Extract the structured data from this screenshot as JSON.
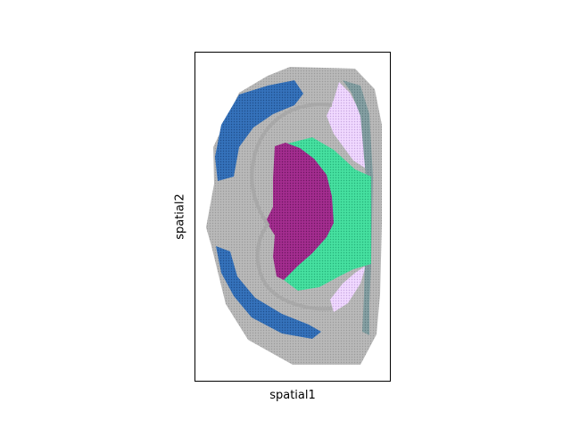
{
  "chart_data": {
    "type": "scatter",
    "title": "",
    "xlabel": "spatial1",
    "ylabel": "spatial2",
    "grid": false,
    "legend": "none",
    "ticks": "none",
    "series": [
      {
        "color": "#b5b5b5",
        "region": "tissue background"
      },
      {
        "color": "#2f6db5",
        "region": "outer cortex band"
      },
      {
        "color": "#e9d0ff",
        "region": "upper right wedge"
      },
      {
        "color": "#e9d0ff",
        "region": "lower right wedge"
      },
      {
        "color": "#7f9ca0",
        "region": "right edge strip"
      },
      {
        "color": "#3fdc9a",
        "region": "central right block"
      },
      {
        "color": "#9a2787",
        "region": "central core"
      }
    ]
  }
}
